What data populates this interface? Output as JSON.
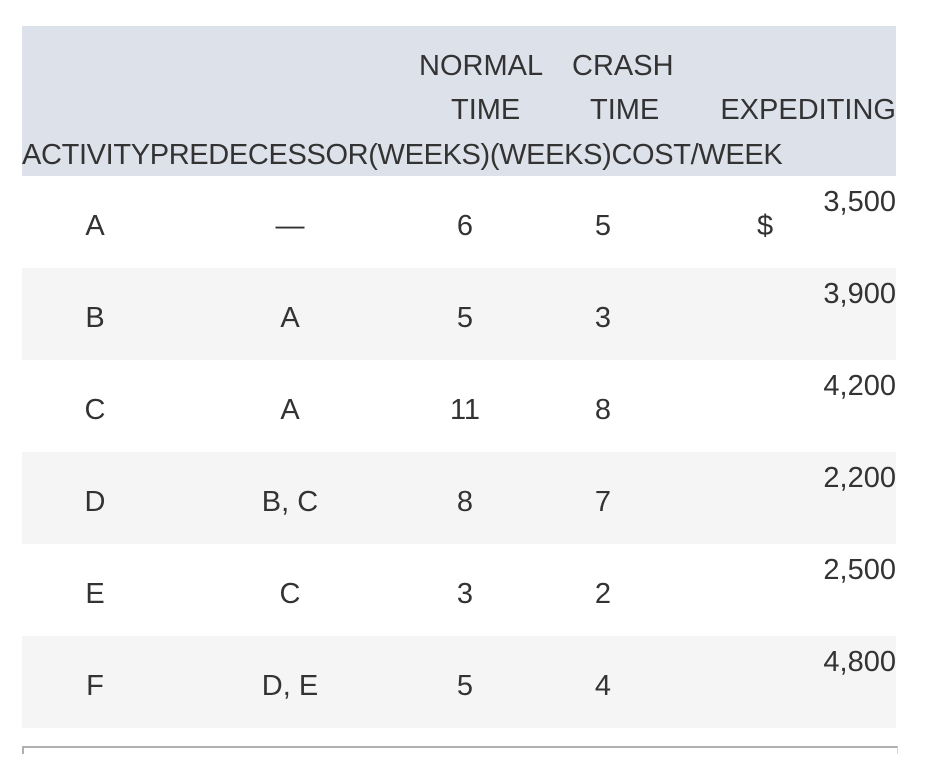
{
  "table": {
    "header": {
      "normal_line1": "NORMAL",
      "crash_line1": "CRASH",
      "normal_line2": "TIME",
      "crash_line2": "TIME",
      "expediting_line2": "EXPEDITING",
      "line3": "ACTIVITYPREDECESSOR(WEEKS)(WEEKS)COST/WEEK"
    },
    "currency_symbol": "$",
    "rows": [
      {
        "activity": "A",
        "predecessor": "—",
        "normal": "6",
        "crash": "5",
        "cost": "3,500"
      },
      {
        "activity": "B",
        "predecessor": "A",
        "normal": "5",
        "crash": "3",
        "cost": "3,900"
      },
      {
        "activity": "C",
        "predecessor": "A",
        "normal": "11",
        "crash": "8",
        "cost": "4,200"
      },
      {
        "activity": "D",
        "predecessor": "B, C",
        "normal": "8",
        "crash": "7",
        "cost": "2,200"
      },
      {
        "activity": "E",
        "predecessor": "C",
        "normal": "3",
        "crash": "2",
        "cost": "2,500"
      },
      {
        "activity": "F",
        "predecessor": "D, E",
        "normal": "5",
        "crash": "4",
        "cost": "4,800"
      }
    ]
  }
}
